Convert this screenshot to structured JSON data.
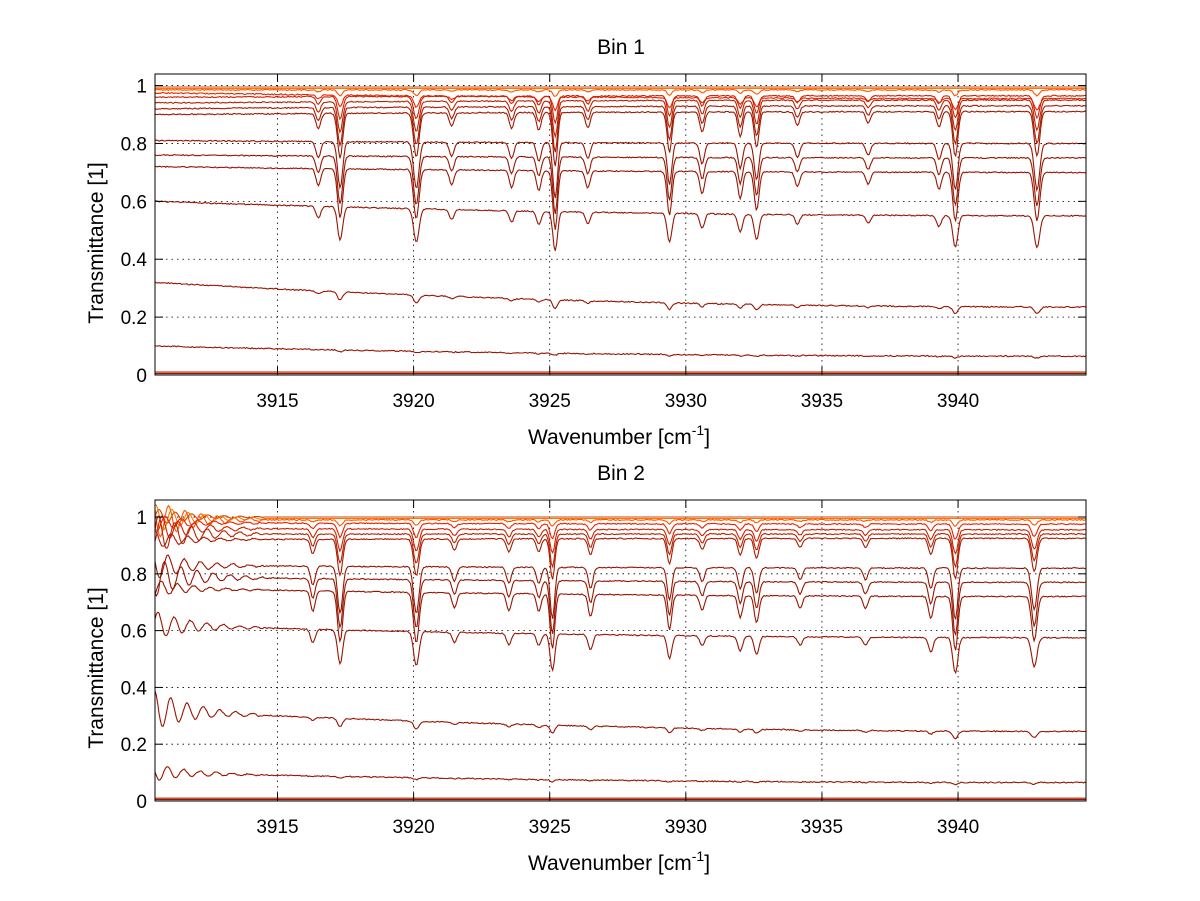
{
  "chart_data": [
    {
      "type": "line",
      "title": "Bin 1",
      "xlabel_main": "Wavenumber [cm",
      "xlabel_sup": "-1",
      "xlabel_end": "]",
      "ylabel": "Transmittance [1]",
      "xlim": [
        3910.5,
        3944.7
      ],
      "ylim": [
        0,
        1.04
      ],
      "xticks": [
        3915,
        3920,
        3925,
        3930,
        3935,
        3940
      ],
      "yticks": [
        0,
        0.2,
        0.4,
        0.6,
        0.8,
        1
      ],
      "ytick_labels": [
        "0",
        "0.2",
        "0.4",
        "0.6",
        "0.8",
        "1"
      ],
      "grid": true,
      "low_wavenumber_ringing": false,
      "absorption_lines": [
        {
          "x": 3916.5,
          "depth": 0.35,
          "width": 0.12
        },
        {
          "x": 3917.3,
          "depth": 1.0,
          "width": 0.13
        },
        {
          "x": 3920.1,
          "depth": 1.0,
          "width": 0.14
        },
        {
          "x": 3921.4,
          "depth": 0.3,
          "width": 0.12
        },
        {
          "x": 3923.6,
          "depth": 0.35,
          "width": 0.12
        },
        {
          "x": 3924.6,
          "depth": 0.4,
          "width": 0.12
        },
        {
          "x": 3925.2,
          "depth": 1.2,
          "width": 0.12
        },
        {
          "x": 3926.4,
          "depth": 0.35,
          "width": 0.12
        },
        {
          "x": 3929.4,
          "depth": 0.9,
          "width": 0.12
        },
        {
          "x": 3930.6,
          "depth": 0.45,
          "width": 0.12
        },
        {
          "x": 3932.0,
          "depth": 0.55,
          "width": 0.12
        },
        {
          "x": 3932.6,
          "depth": 0.8,
          "width": 0.12
        },
        {
          "x": 3934.1,
          "depth": 0.3,
          "width": 0.12
        },
        {
          "x": 3936.7,
          "depth": 0.25,
          "width": 0.12
        },
        {
          "x": 3939.3,
          "depth": 0.35,
          "width": 0.12
        },
        {
          "x": 3939.9,
          "depth": 1.0,
          "width": 0.13
        },
        {
          "x": 3942.9,
          "depth": 1.0,
          "width": 0.14
        }
      ],
      "series": [
        {
          "color": "#cc4400",
          "start": 0.995,
          "end": 0.995,
          "line_scale": 0.0
        },
        {
          "color": "#ff7700",
          "start": 0.99,
          "end": 0.99,
          "line_scale": 0.0
        },
        {
          "color": "#ff5500",
          "start": 0.985,
          "end": 0.985,
          "line_scale": 0.02
        },
        {
          "color": "#ee2200",
          "start": 0.975,
          "end": 0.955,
          "line_scale": 0.04
        },
        {
          "color": "#cc2200",
          "start": 0.96,
          "end": 0.965,
          "line_scale": 0.08
        },
        {
          "color": "#bb2200",
          "start": 0.94,
          "end": 0.95,
          "line_scale": 0.11
        },
        {
          "color": "#aa1a00",
          "start": 0.92,
          "end": 0.93,
          "line_scale": 0.14
        },
        {
          "color": "#a01800",
          "start": 0.9,
          "end": 0.91,
          "line_scale": 0.17
        },
        {
          "color": "#991500",
          "start": 0.81,
          "end": 0.8,
          "line_scale": 0.2
        },
        {
          "color": "#991500",
          "start": 0.76,
          "end": 0.75,
          "line_scale": 0.22
        },
        {
          "color": "#991500",
          "start": 0.72,
          "end": 0.7,
          "line_scale": 0.24
        },
        {
          "color": "#991500",
          "start": 0.6,
          "end": 0.55,
          "line_scale": 0.2
        },
        {
          "color": "#991500",
          "start": 0.32,
          "end": 0.235,
          "line_scale": 0.1
        },
        {
          "color": "#991500",
          "start": 0.1,
          "end": 0.065,
          "line_scale": 0.04
        },
        {
          "color": "#aa1a00",
          "start": 0.01,
          "end": 0.01,
          "line_scale": 0.0
        },
        {
          "color": "#991500",
          "start": 0.005,
          "end": 0.005,
          "line_scale": 0.0
        },
        {
          "color": "#772000",
          "start": 0.0,
          "end": 0.0,
          "line_scale": 0.0
        }
      ]
    },
    {
      "type": "line",
      "title": "Bin 2",
      "xlabel_main": "Wavenumber [cm",
      "xlabel_sup": "-1",
      "xlabel_end": "]",
      "ylabel": "Transmittance [1]",
      "xlim": [
        3910.5,
        3944.7
      ],
      "ylim": [
        0,
        1.06
      ],
      "xticks": [
        3915,
        3920,
        3925,
        3930,
        3935,
        3940
      ],
      "yticks": [
        0,
        0.2,
        0.4,
        0.6,
        0.8,
        1
      ],
      "ytick_labels": [
        "0",
        "0.2",
        "0.4",
        "0.6",
        "0.8",
        "1"
      ],
      "grid": true,
      "low_wavenumber_ringing": true,
      "absorption_lines": [
        {
          "x": 3916.3,
          "depth": 0.4,
          "width": 0.12
        },
        {
          "x": 3917.3,
          "depth": 1.0,
          "width": 0.13
        },
        {
          "x": 3920.1,
          "depth": 1.0,
          "width": 0.14
        },
        {
          "x": 3921.5,
          "depth": 0.3,
          "width": 0.12
        },
        {
          "x": 3923.5,
          "depth": 0.35,
          "width": 0.12
        },
        {
          "x": 3924.6,
          "depth": 0.35,
          "width": 0.12
        },
        {
          "x": 3925.1,
          "depth": 1.1,
          "width": 0.12
        },
        {
          "x": 3926.5,
          "depth": 0.45,
          "width": 0.12
        },
        {
          "x": 3929.4,
          "depth": 0.7,
          "width": 0.12
        },
        {
          "x": 3930.6,
          "depth": 0.3,
          "width": 0.12
        },
        {
          "x": 3932.0,
          "depth": 0.45,
          "width": 0.12
        },
        {
          "x": 3932.6,
          "depth": 0.55,
          "width": 0.12
        },
        {
          "x": 3934.2,
          "depth": 0.25,
          "width": 0.12
        },
        {
          "x": 3936.6,
          "depth": 0.25,
          "width": 0.12
        },
        {
          "x": 3939.0,
          "depth": 0.45,
          "width": 0.12
        },
        {
          "x": 3939.9,
          "depth": 1.1,
          "width": 0.13
        },
        {
          "x": 3942.8,
          "depth": 0.9,
          "width": 0.14
        }
      ],
      "series": [
        {
          "color": "#cc4400",
          "start": 1.0,
          "end": 1.0,
          "line_scale": 0.0
        },
        {
          "color": "#ff7700",
          "start": 0.995,
          "end": 0.995,
          "line_scale": 0.0
        },
        {
          "color": "#ff5500",
          "start": 0.99,
          "end": 0.99,
          "line_scale": 0.02
        },
        {
          "color": "#ee2200",
          "start": 0.98,
          "end": 0.975,
          "line_scale": 0.05
        },
        {
          "color": "#cc2200",
          "start": 0.96,
          "end": 0.955,
          "line_scale": 0.08
        },
        {
          "color": "#bb2200",
          "start": 0.94,
          "end": 0.94,
          "line_scale": 0.11
        },
        {
          "color": "#aa1a00",
          "start": 0.92,
          "end": 0.925,
          "line_scale": 0.14
        },
        {
          "color": "#991500",
          "start": 0.83,
          "end": 0.82,
          "line_scale": 0.2
        },
        {
          "color": "#991500",
          "start": 0.79,
          "end": 0.77,
          "line_scale": 0.22
        },
        {
          "color": "#991500",
          "start": 0.75,
          "end": 0.72,
          "line_scale": 0.24
        },
        {
          "color": "#991500",
          "start": 0.62,
          "end": 0.575,
          "line_scale": 0.2
        },
        {
          "color": "#991500",
          "start": 0.32,
          "end": 0.245,
          "line_scale": 0.1
        },
        {
          "color": "#991500",
          "start": 0.1,
          "end": 0.065,
          "line_scale": 0.04
        },
        {
          "color": "#aa1a00",
          "start": 0.01,
          "end": 0.01,
          "line_scale": 0.0
        },
        {
          "color": "#991500",
          "start": 0.005,
          "end": 0.005,
          "line_scale": 0.0
        },
        {
          "color": "#772000",
          "start": 0.0,
          "end": 0.0,
          "line_scale": 0.0
        }
      ]
    }
  ]
}
